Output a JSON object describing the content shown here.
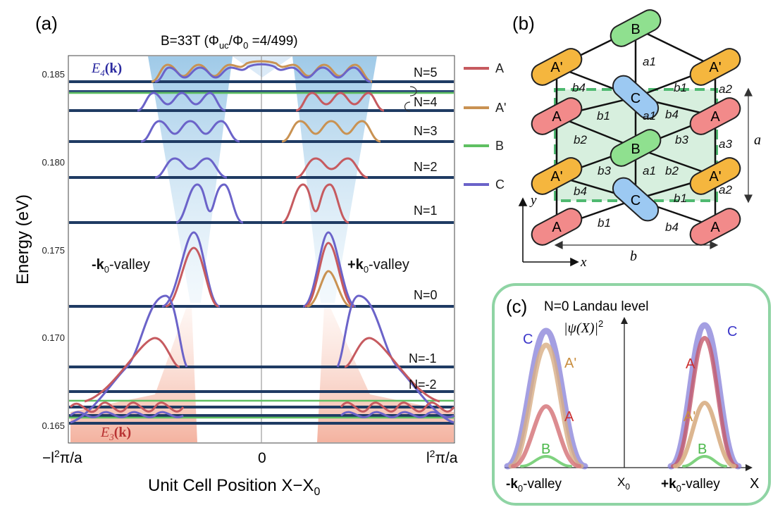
{
  "panel_a": {
    "label": "(a)",
    "title": "B=33T (Φ",
    "title_sub": "uc",
    "title_mid": "/Φ",
    "title_sub2": "0",
    "title_end": " =4/499)",
    "ylabel": "Energy (eV)",
    "xlabel": "Unit Cell Position X−X",
    "xlabel_sub": "0",
    "xtick_left": "−l",
    "xtick_left_sup": "2",
    "xtick_left_end": "π/a",
    "xtick_mid": "0",
    "xtick_right": "l",
    "xtick_right_sup": "2",
    "xtick_right_end": "π/a",
    "yticks": [
      "0.185",
      "0.180",
      "0.175",
      "0.170",
      "0.165"
    ],
    "band_upper": "E",
    "band_upper_sub": "4",
    "band_upper_k": "(k)",
    "band_lower": "E",
    "band_lower_sub": "3",
    "band_lower_k": "(k)",
    "valley_left": "-k",
    "valley_left_sub": "0",
    "valley_left_end": "-valley",
    "valley_right": "+k",
    "valley_right_sub": "0",
    "valley_right_end": "-valley",
    "levels": [
      "N=5",
      "N=4",
      "N=3",
      "N=2",
      "N=1",
      "N=0",
      "N=-1",
      "N=-2"
    ]
  },
  "legend": [
    {
      "label": "A",
      "color": "#c65a5f"
    },
    {
      "label": "A'",
      "color": "#c99252"
    },
    {
      "label": "B",
      "color": "#5fc062"
    },
    {
      "label": "C",
      "color": "#6b63c9"
    }
  ],
  "panel_b": {
    "label": "(b)",
    "atoms": [
      "B",
      "A'",
      "A'",
      "C",
      "A",
      "A",
      "B",
      "A'",
      "A'",
      "C",
      "A",
      "A"
    ],
    "bonds": [
      "a1",
      "b4",
      "b1",
      "a2",
      "b1",
      "a1",
      "b4",
      "b2",
      "b3",
      "a3",
      "b3",
      "a1",
      "b2",
      "b4",
      "b1",
      "a2",
      "b1",
      "b4"
    ],
    "axis_x": "x",
    "axis_y": "y",
    "dim_a": "a",
    "dim_b": "b"
  },
  "panel_c": {
    "label": "(c)",
    "title": "N=0 Landau level",
    "ylabel": "|ψ(X)|",
    "ylabel_sup": "2",
    "xlabel": "X",
    "x0": "X",
    "x0_sub": "0",
    "valley_left": "-k",
    "valley_left_sub": "0",
    "valley_left_end": "-valley",
    "valley_right": "+k",
    "valley_right_sub": "0",
    "valley_right_end": "-valley",
    "left_labels": [
      "C",
      "A'",
      "A",
      "B"
    ],
    "right_labels": [
      "C",
      "A",
      "A'",
      "B"
    ]
  },
  "chart_data": {
    "type": "line",
    "title": "B=33T (Φuc/Φ0 =4/499)",
    "xlabel": "Unit Cell Position X−X0",
    "ylabel": "Energy (eV)",
    "ylim": [
      0.1643,
      0.1866
    ],
    "landau_levels_eV": [
      0.18465,
      0.1829,
      0.1812,
      0.1791,
      0.1766,
      0.1717,
      0.1682,
      0.1667
    ]
  }
}
